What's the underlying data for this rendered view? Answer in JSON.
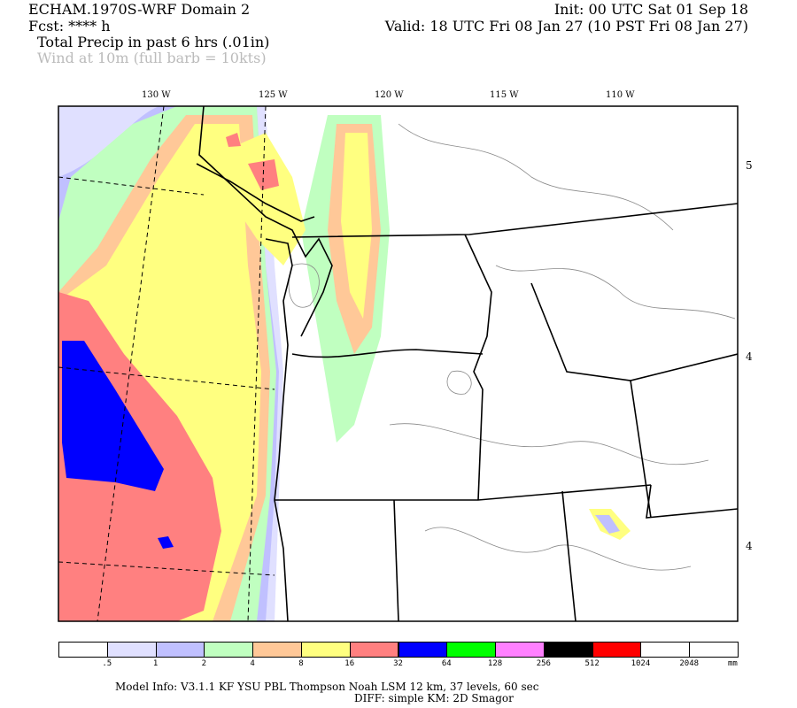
{
  "header": {
    "model_title": "ECHAM.1970S-WRF Domain 2",
    "fcst": "Fcst: **** h",
    "init": "Init: 00 UTC Sat 01 Sep 18",
    "valid": "Valid: 18 UTC Fri 08 Jan 27 (10 PST Fri 08 Jan 27)",
    "field1": "Total Precip in past 6 hrs (.01in)",
    "field2": "Wind at 10m (full barb = 10kts)"
  },
  "map": {
    "lon_labels": [
      "130 W",
      "125 W",
      "120 W",
      "115 W",
      "110 W"
    ],
    "lat_labels": [
      "5",
      "4",
      "4"
    ]
  },
  "colorbar": {
    "colors": [
      "#ffffff",
      "#e0e0ff",
      "#c0c0ff",
      "#c0ffc0",
      "#ffc898",
      "#ffff80",
      "#ff8080",
      "#0000ff",
      "#00ff00",
      "#ff80ff",
      "#000000",
      "#ff0000",
      "#ffffff",
      "#ffffff"
    ],
    "labels": [
      ".5",
      "1",
      "2",
      "4",
      "8",
      "16",
      "32",
      "64",
      "128",
      "256",
      "512",
      "1024",
      "2048"
    ],
    "unit": "mm"
  },
  "footer": {
    "line1": "Model Info: V3.1.1    KF      YSU PBL   Thompson     Noah LSM  12 km,     37 levels,     60 sec",
    "line2": "DIFF: simple KM: 2D Smagor"
  }
}
